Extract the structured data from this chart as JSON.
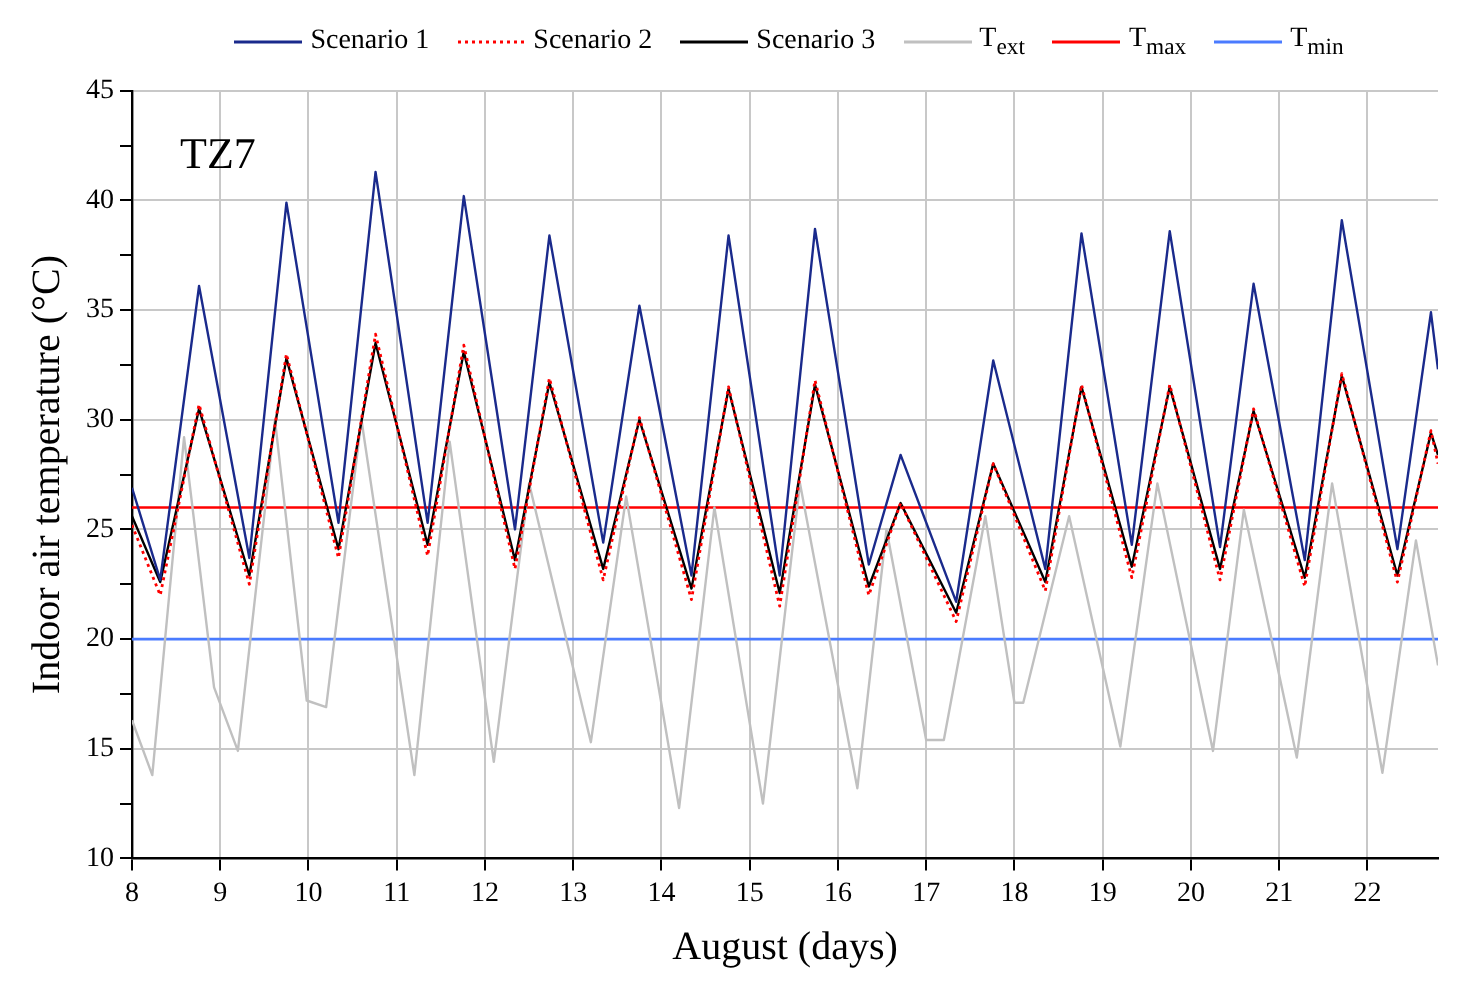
{
  "chart_data": {
    "type": "line",
    "xlabel": "August (days)",
    "ylabel": "Indoor air temperature (°C)",
    "annotations": [
      "TZ7"
    ],
    "xlim": [
      8,
      22.8
    ],
    "xticks": [
      8,
      9,
      10,
      11,
      12,
      13,
      14,
      15,
      16,
      17,
      18,
      19,
      20,
      21,
      22
    ],
    "ylim": [
      10,
      45
    ],
    "yticks": [
      10,
      {
        "value": 12.5,
        "label": null
      },
      15,
      {
        "value": 17.5,
        "label": null
      },
      20,
      {
        "value": 22.5,
        "label": null
      },
      25,
      {
        "value": 27.5,
        "label": null
      },
      30,
      {
        "value": 32.5,
        "label": null
      },
      35,
      {
        "value": 37.5,
        "label": null
      },
      40,
      {
        "value": 42.5,
        "label": null
      },
      45
    ],
    "grid": true,
    "legend": "top",
    "marker": "none",
    "series": [
      {
        "name": "Scenario 1",
        "color": "#1a2a8c",
        "line_style": "solid",
        "x": [
          8,
          8.32,
          8.76,
          9.33,
          9.75,
          10.34,
          10.76,
          11.35,
          11.76,
          12.34,
          12.73,
          13.34,
          13.75,
          14.34,
          14.76,
          15.34,
          15.74,
          16.35,
          16.71,
          17.34,
          17.76,
          18.35,
          18.76,
          19.33,
          19.76,
          20.33,
          20.71,
          21.29,
          21.71,
          22.34,
          22.72,
          22.8
        ],
        "values": [
          26.9,
          22.7,
          36.1,
          23.7,
          39.9,
          25.3,
          41.3,
          25.3,
          40.2,
          25.0,
          38.4,
          24.4,
          35.2,
          22.9,
          38.4,
          22.9,
          38.7,
          23.4,
          28.4,
          21.7,
          32.7,
          23.2,
          38.5,
          24.3,
          38.6,
          24.2,
          36.2,
          23.6,
          39.1,
          24.1,
          34.9,
          32.3
        ]
      },
      {
        "name": "Scenario 2",
        "color": "#ff0000",
        "line_style": "dotted",
        "x": [
          8,
          8.32,
          8.76,
          9.33,
          9.75,
          10.34,
          10.76,
          11.35,
          11.76,
          12.34,
          12.73,
          13.34,
          13.75,
          14.34,
          14.76,
          15.34,
          15.74,
          16.35,
          16.71,
          17.34,
          17.76,
          18.35,
          18.76,
          19.33,
          19.76,
          20.33,
          20.71,
          21.29,
          21.71,
          22.34,
          22.72,
          22.8
        ],
        "values": [
          25.2,
          22.0,
          30.7,
          22.5,
          33.0,
          23.7,
          33.9,
          23.8,
          33.4,
          23.2,
          31.9,
          22.7,
          30.1,
          21.8,
          31.5,
          21.5,
          31.8,
          22.0,
          26.2,
          20.8,
          28.0,
          22.2,
          31.6,
          22.8,
          31.6,
          22.7,
          30.5,
          22.4,
          32.1,
          22.6,
          29.5,
          28.0
        ]
      },
      {
        "name": "Scenario 3",
        "color": "#000000",
        "line_style": "solid",
        "x": [
          8,
          8.32,
          8.76,
          9.33,
          9.75,
          10.34,
          10.76,
          11.35,
          11.76,
          12.34,
          12.73,
          13.34,
          13.75,
          14.34,
          14.76,
          15.34,
          15.74,
          16.35,
          16.71,
          17.34,
          17.76,
          18.35,
          18.76,
          19.33,
          19.76,
          20.33,
          20.71,
          21.29,
          21.71,
          22.34,
          22.72,
          22.8
        ],
        "values": [
          25.6,
          22.6,
          30.5,
          22.9,
          32.8,
          24.1,
          33.5,
          24.3,
          33.1,
          23.6,
          31.7,
          23.2,
          30.0,
          22.3,
          31.4,
          22.1,
          31.6,
          22.4,
          26.2,
          21.2,
          28.0,
          22.6,
          31.5,
          23.3,
          31.5,
          23.2,
          30.4,
          22.8,
          32.0,
          22.9,
          29.4,
          28.4
        ]
      },
      {
        "name": "T$_{ext}$",
        "color": "#c0c0c0",
        "line_style": "solid",
        "x": [
          8,
          8.23,
          8.59,
          8.93,
          9.2,
          9.62,
          9.98,
          10.2,
          10.6,
          11.2,
          11.6,
          12.1,
          12.5,
          13.2,
          13.6,
          14.2,
          14.6,
          15.15,
          15.57,
          16.22,
          16.55,
          17.0,
          17.2,
          17.67,
          18.0,
          18.1,
          18.62,
          19.2,
          19.62,
          20.25,
          20.6,
          21.2,
          21.6,
          22.17,
          22.55,
          22.8
        ],
        "values": [
          16.3,
          13.8,
          29.2,
          17.8,
          14.9,
          30.0,
          17.2,
          16.9,
          30.0,
          13.8,
          29.0,
          14.4,
          27.1,
          15.3,
          26.5,
          12.3,
          26.0,
          12.5,
          27.1,
          13.2,
          25.0,
          15.4,
          15.4,
          25.6,
          17.1,
          17.1,
          25.6,
          15.1,
          27.1,
          14.9,
          25.9,
          14.6,
          27.1,
          13.9,
          24.5,
          18.8
        ]
      }
    ],
    "ref_lines": [
      {
        "axis": "y",
        "value": 26,
        "label": "T$_{max}$",
        "color": "#ff0000",
        "line_style": "solid"
      },
      {
        "axis": "y",
        "value": 20,
        "label": "T$_{min}$",
        "color": "#4a7bff",
        "line_style": "solid"
      }
    ]
  }
}
